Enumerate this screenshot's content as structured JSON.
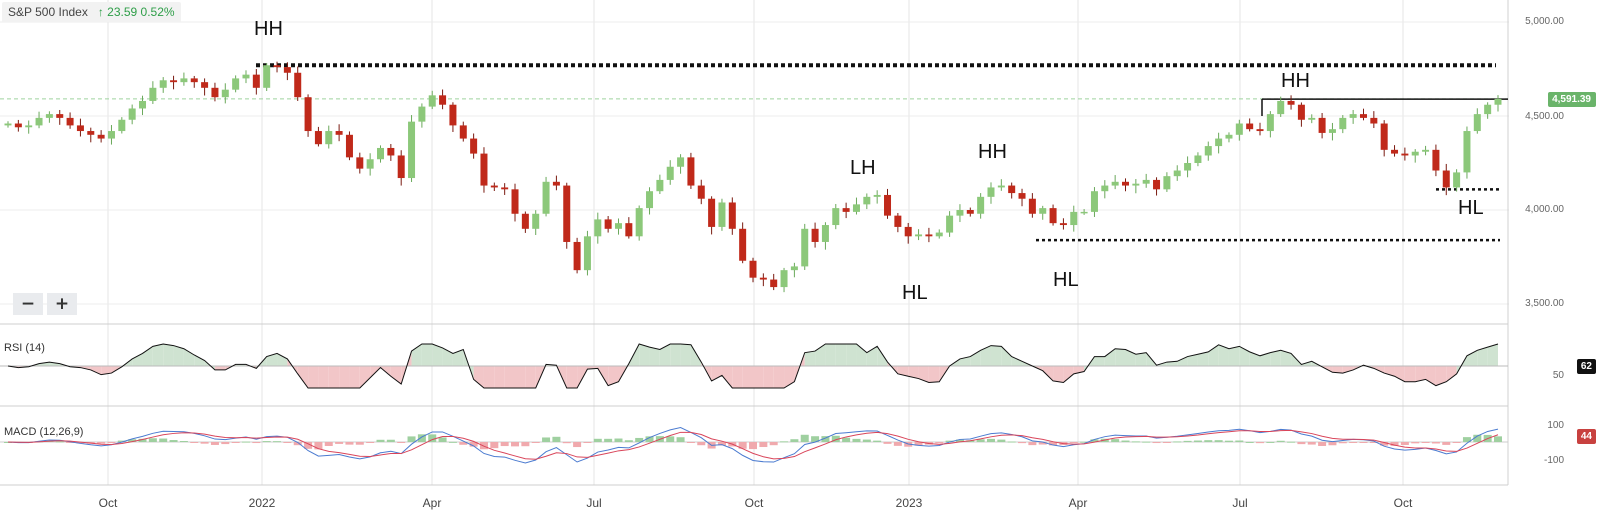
{
  "header": {
    "name": "S&P 500 Index",
    "change": "↑ 23.59  0.52%"
  },
  "zoom": {
    "minus": "−",
    "plus": "+"
  },
  "annotations": {
    "hh1": "HH",
    "hh2": "HH",
    "hh3": "HH",
    "lh": "LH",
    "hl1": "HL",
    "hl2": "HL",
    "hl3": "HL"
  },
  "colors": {
    "up": "#8cc87a",
    "down": "#c0291a",
    "rsi_fill_up": "#cfe3d1",
    "rsi_fill_down": "#f2c6c8",
    "macd": "#4b7bd0",
    "signal": "#d9455a"
  },
  "x_axis": [
    "Oct",
    "2022",
    "Apr",
    "Jul",
    "Oct",
    "2023",
    "Apr",
    "Jul",
    "Oct"
  ],
  "y_axis": [
    "5,000.00",
    "4,500.00",
    "4,000.00",
    "3,500.00"
  ],
  "price_tag": "4,591.39",
  "rsi": {
    "label": "RSI (14)",
    "value": "62",
    "level": "50"
  },
  "macd": {
    "label": "MACD (12,26,9)",
    "value": "44",
    "levels": [
      "100",
      "-100"
    ]
  },
  "chart_data": {
    "type": "candlestick",
    "title": "S&P 500 Index",
    "x_ticks": [
      "Oct",
      "2022",
      "Apr",
      "Jul",
      "Oct",
      "2023",
      "Apr",
      "Jul",
      "Oct"
    ],
    "ylim": [
      3350,
      5100
    ],
    "y_ticks": [
      3500,
      4000,
      4500,
      5000
    ],
    "last_price": 4591.39,
    "support_resistance": [
      4770,
      4590,
      4110,
      3840
    ],
    "closes": [
      4460,
      4440,
      4450,
      4490,
      4510,
      4490,
      4450,
      4420,
      4400,
      4380,
      4420,
      4480,
      4540,
      4580,
      4650,
      4690,
      4680,
      4700,
      4680,
      4650,
      4600,
      4640,
      4700,
      4720,
      4650,
      4770,
      4760,
      4730,
      4600,
      4420,
      4350,
      4420,
      4400,
      4280,
      4220,
      4270,
      4330,
      4290,
      4170,
      4470,
      4550,
      4610,
      4560,
      4450,
      4380,
      4300,
      4130,
      4120,
      4110,
      3980,
      3900,
      3980,
      4150,
      4130,
      3830,
      3680,
      3860,
      3950,
      3900,
      3930,
      3860,
      4010,
      4100,
      4160,
      4230,
      4280,
      4130,
      4060,
      3910,
      4040,
      3900,
      3730,
      3640,
      3630,
      3590,
      3680,
      3700,
      3900,
      3830,
      3920,
      4010,
      3990,
      4030,
      4070,
      4080,
      3970,
      3910,
      3860,
      3870,
      3860,
      3880,
      3970,
      4000,
      3980,
      4070,
      4120,
      4130,
      4090,
      4060,
      3980,
      4010,
      3930,
      3920,
      3990,
      3990,
      4100,
      4130,
      4150,
      4130,
      4140,
      4160,
      4110,
      4180,
      4210,
      4250,
      4290,
      4340,
      4380,
      4400,
      4460,
      4430,
      4420,
      4510,
      4580,
      4560,
      4480,
      4490,
      4410,
      4430,
      4490,
      4510,
      4490,
      4460,
      4320,
      4300,
      4290,
      4310,
      4320,
      4210,
      4120,
      4200,
      4420,
      4510,
      4560,
      4591
    ]
  }
}
